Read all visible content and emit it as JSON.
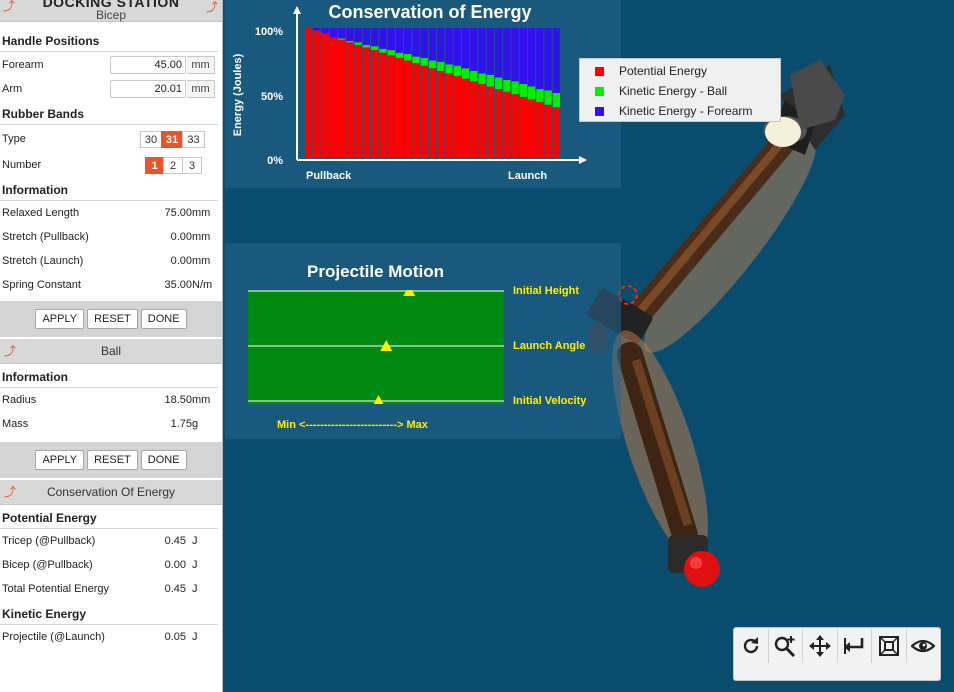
{
  "sidebar": {
    "dock_title": "DOCKING STATION",
    "bicep_header": "Bicep",
    "handle_positions": {
      "title": "Handle Positions",
      "forearm_label": "Forearm",
      "forearm_value": "45.00",
      "forearm_unit": "mm",
      "arm_label": "Arm",
      "arm_value": "20.01",
      "arm_unit": "mm"
    },
    "rubber_bands": {
      "title": "Rubber Bands",
      "type_label": "Type",
      "type_options": [
        "30",
        "31",
        "33"
      ],
      "type_selected": "31",
      "number_label": "Number",
      "number_options": [
        "1",
        "2",
        "3"
      ],
      "number_selected": "1"
    },
    "information": {
      "title": "Information",
      "rows": [
        {
          "label": "Relaxed Length",
          "value": "75.00",
          "unit": "mm"
        },
        {
          "label": "Stretch (Pullback)",
          "value": "0.00",
          "unit": "mm"
        },
        {
          "label": "Stretch (Launch)",
          "value": "0.00",
          "unit": "mm"
        },
        {
          "label": "Spring Constant",
          "value": "35.00",
          "unit": "N/m"
        }
      ]
    },
    "buttons": {
      "apply": "APPLY",
      "reset": "RESET",
      "done": "DONE"
    },
    "ball": {
      "header": "Ball",
      "info_title": "Information",
      "rows": [
        {
          "label": "Radius",
          "value": "18.50",
          "unit": "mm"
        },
        {
          "label": "Mass",
          "value": "1.75",
          "unit": "g"
        }
      ]
    },
    "energy": {
      "header": "Conservation Of Energy",
      "potential_title": "Potential Energy",
      "potential_rows": [
        {
          "label": "Tricep (@Pullback)",
          "value": "0.45",
          "unit": "J"
        },
        {
          "label": "Bicep (@Pullback)",
          "value": "0.00",
          "unit": "J"
        },
        {
          "label": "Total Potential Energy",
          "value": "0.45",
          "unit": "J"
        }
      ],
      "kinetic_title": "Kinetic Energy",
      "kinetic_rows": [
        {
          "label": "Projectile (@Launch)",
          "value": "0.05",
          "unit": "J"
        }
      ]
    }
  },
  "chart_data": {
    "type": "bar",
    "stacked": true,
    "title": "Conservation of Energy",
    "ylabel": "Energy (Joules)",
    "ylim": [
      0,
      100
    ],
    "yticks": [
      "0%",
      "50%",
      "100%"
    ],
    "xlabels": {
      "start": "Pullback",
      "end": "Launch"
    },
    "legend_position": "top-right",
    "series": [
      {
        "name": "Potential Energy",
        "color": "#ff0000",
        "values": [
          100,
          98,
          96,
          93,
          91,
          89,
          87,
          85,
          83,
          81,
          79,
          77,
          75,
          73,
          71,
          69,
          67,
          65,
          63,
          61,
          59,
          57,
          55,
          53,
          51,
          49,
          47,
          45,
          43,
          41,
          39
        ]
      },
      {
        "name": "Kinetic Energy - Ball",
        "color": "#00ee00",
        "values": [
          0,
          0,
          0,
          0,
          1,
          1,
          2,
          2,
          3,
          3,
          4,
          4,
          5,
          5,
          6,
          6,
          7,
          7,
          8,
          8,
          8,
          8,
          9,
          9,
          9,
          10,
          10,
          10,
          10,
          11,
          11
        ]
      },
      {
        "name": "Kinetic Energy - Forearm",
        "color": "#3311ee",
        "values": [
          0,
          2,
          4,
          7,
          8,
          10,
          11,
          13,
          14,
          16,
          17,
          19,
          20,
          22,
          23,
          25,
          26,
          28,
          29,
          31,
          33,
          35,
          36,
          38,
          40,
          41,
          43,
          45,
          47,
          48,
          50
        ]
      }
    ]
  },
  "projectile": {
    "title": "Projectile Motion",
    "bg_color": "#008a11",
    "labels": [
      "Initial Height",
      "Launch Angle",
      "Initial Velocity"
    ],
    "levels": [
      0.63,
      0.54,
      0.51
    ],
    "range_label": "Min <-------------------------> Max"
  },
  "toolbar": {
    "icons": [
      "rotate-icon",
      "zoom-in-icon",
      "pan-icon",
      "reset-view-icon",
      "fit-view-icon",
      "visibility-icon"
    ]
  }
}
